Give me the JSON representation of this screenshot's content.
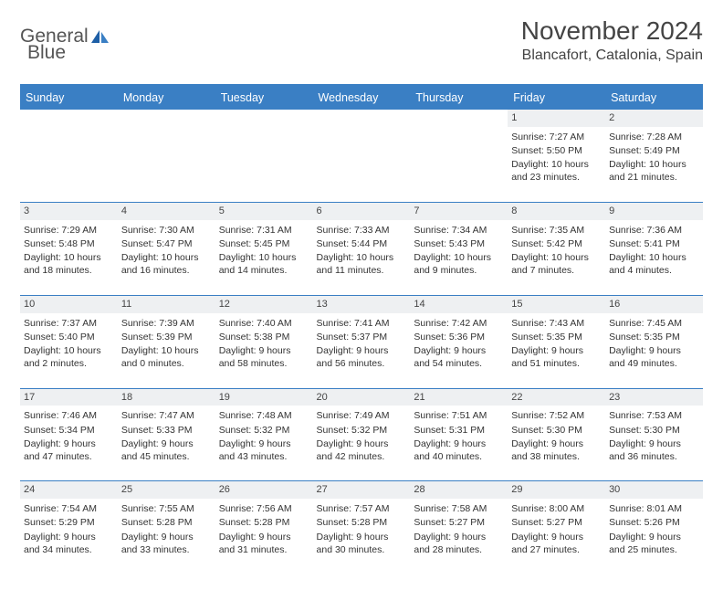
{
  "logo": {
    "word1": "General",
    "word2": "Blue"
  },
  "header": {
    "month_title": "November 2024",
    "location": "Blancafort, Catalonia, Spain"
  },
  "day_headers": [
    "Sunday",
    "Monday",
    "Tuesday",
    "Wednesday",
    "Thursday",
    "Friday",
    "Saturday"
  ],
  "colors": {
    "accent": "#3a7fc4",
    "header_text": "#ffffff",
    "daynum_bg": "#eef0f2",
    "body_text": "#333333"
  },
  "weeks": [
    [
      null,
      null,
      null,
      null,
      null,
      {
        "day": "1",
        "sunrise": "Sunrise: 7:27 AM",
        "sunset": "Sunset: 5:50 PM",
        "daylight": "Daylight: 10 hours and 23 minutes."
      },
      {
        "day": "2",
        "sunrise": "Sunrise: 7:28 AM",
        "sunset": "Sunset: 5:49 PM",
        "daylight": "Daylight: 10 hours and 21 minutes."
      }
    ],
    [
      {
        "day": "3",
        "sunrise": "Sunrise: 7:29 AM",
        "sunset": "Sunset: 5:48 PM",
        "daylight": "Daylight: 10 hours and 18 minutes."
      },
      {
        "day": "4",
        "sunrise": "Sunrise: 7:30 AM",
        "sunset": "Sunset: 5:47 PM",
        "daylight": "Daylight: 10 hours and 16 minutes."
      },
      {
        "day": "5",
        "sunrise": "Sunrise: 7:31 AM",
        "sunset": "Sunset: 5:45 PM",
        "daylight": "Daylight: 10 hours and 14 minutes."
      },
      {
        "day": "6",
        "sunrise": "Sunrise: 7:33 AM",
        "sunset": "Sunset: 5:44 PM",
        "daylight": "Daylight: 10 hours and 11 minutes."
      },
      {
        "day": "7",
        "sunrise": "Sunrise: 7:34 AM",
        "sunset": "Sunset: 5:43 PM",
        "daylight": "Daylight: 10 hours and 9 minutes."
      },
      {
        "day": "8",
        "sunrise": "Sunrise: 7:35 AM",
        "sunset": "Sunset: 5:42 PM",
        "daylight": "Daylight: 10 hours and 7 minutes."
      },
      {
        "day": "9",
        "sunrise": "Sunrise: 7:36 AM",
        "sunset": "Sunset: 5:41 PM",
        "daylight": "Daylight: 10 hours and 4 minutes."
      }
    ],
    [
      {
        "day": "10",
        "sunrise": "Sunrise: 7:37 AM",
        "sunset": "Sunset: 5:40 PM",
        "daylight": "Daylight: 10 hours and 2 minutes."
      },
      {
        "day": "11",
        "sunrise": "Sunrise: 7:39 AM",
        "sunset": "Sunset: 5:39 PM",
        "daylight": "Daylight: 10 hours and 0 minutes."
      },
      {
        "day": "12",
        "sunrise": "Sunrise: 7:40 AM",
        "sunset": "Sunset: 5:38 PM",
        "daylight": "Daylight: 9 hours and 58 minutes."
      },
      {
        "day": "13",
        "sunrise": "Sunrise: 7:41 AM",
        "sunset": "Sunset: 5:37 PM",
        "daylight": "Daylight: 9 hours and 56 minutes."
      },
      {
        "day": "14",
        "sunrise": "Sunrise: 7:42 AM",
        "sunset": "Sunset: 5:36 PM",
        "daylight": "Daylight: 9 hours and 54 minutes."
      },
      {
        "day": "15",
        "sunrise": "Sunrise: 7:43 AM",
        "sunset": "Sunset: 5:35 PM",
        "daylight": "Daylight: 9 hours and 51 minutes."
      },
      {
        "day": "16",
        "sunrise": "Sunrise: 7:45 AM",
        "sunset": "Sunset: 5:35 PM",
        "daylight": "Daylight: 9 hours and 49 minutes."
      }
    ],
    [
      {
        "day": "17",
        "sunrise": "Sunrise: 7:46 AM",
        "sunset": "Sunset: 5:34 PM",
        "daylight": "Daylight: 9 hours and 47 minutes."
      },
      {
        "day": "18",
        "sunrise": "Sunrise: 7:47 AM",
        "sunset": "Sunset: 5:33 PM",
        "daylight": "Daylight: 9 hours and 45 minutes."
      },
      {
        "day": "19",
        "sunrise": "Sunrise: 7:48 AM",
        "sunset": "Sunset: 5:32 PM",
        "daylight": "Daylight: 9 hours and 43 minutes."
      },
      {
        "day": "20",
        "sunrise": "Sunrise: 7:49 AM",
        "sunset": "Sunset: 5:32 PM",
        "daylight": "Daylight: 9 hours and 42 minutes."
      },
      {
        "day": "21",
        "sunrise": "Sunrise: 7:51 AM",
        "sunset": "Sunset: 5:31 PM",
        "daylight": "Daylight: 9 hours and 40 minutes."
      },
      {
        "day": "22",
        "sunrise": "Sunrise: 7:52 AM",
        "sunset": "Sunset: 5:30 PM",
        "daylight": "Daylight: 9 hours and 38 minutes."
      },
      {
        "day": "23",
        "sunrise": "Sunrise: 7:53 AM",
        "sunset": "Sunset: 5:30 PM",
        "daylight": "Daylight: 9 hours and 36 minutes."
      }
    ],
    [
      {
        "day": "24",
        "sunrise": "Sunrise: 7:54 AM",
        "sunset": "Sunset: 5:29 PM",
        "daylight": "Daylight: 9 hours and 34 minutes."
      },
      {
        "day": "25",
        "sunrise": "Sunrise: 7:55 AM",
        "sunset": "Sunset: 5:28 PM",
        "daylight": "Daylight: 9 hours and 33 minutes."
      },
      {
        "day": "26",
        "sunrise": "Sunrise: 7:56 AM",
        "sunset": "Sunset: 5:28 PM",
        "daylight": "Daylight: 9 hours and 31 minutes."
      },
      {
        "day": "27",
        "sunrise": "Sunrise: 7:57 AM",
        "sunset": "Sunset: 5:28 PM",
        "daylight": "Daylight: 9 hours and 30 minutes."
      },
      {
        "day": "28",
        "sunrise": "Sunrise: 7:58 AM",
        "sunset": "Sunset: 5:27 PM",
        "daylight": "Daylight: 9 hours and 28 minutes."
      },
      {
        "day": "29",
        "sunrise": "Sunrise: 8:00 AM",
        "sunset": "Sunset: 5:27 PM",
        "daylight": "Daylight: 9 hours and 27 minutes."
      },
      {
        "day": "30",
        "sunrise": "Sunrise: 8:01 AM",
        "sunset": "Sunset: 5:26 PM",
        "daylight": "Daylight: 9 hours and 25 minutes."
      }
    ]
  ]
}
